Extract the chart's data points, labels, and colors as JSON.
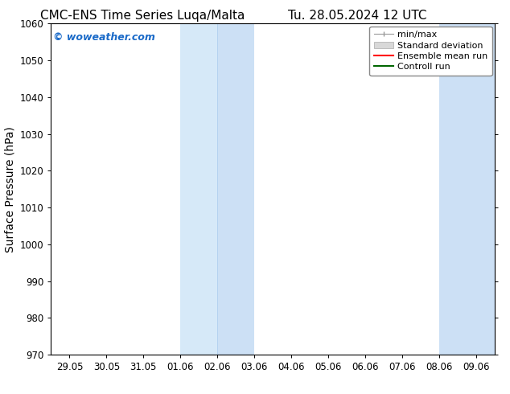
{
  "title_left": "CMC-ENS Time Series Luqa/Malta",
  "title_right": "Tu. 28.05.2024 12 UTC",
  "ylabel": "Surface Pressure (hPa)",
  "ylim": [
    970,
    1060
  ],
  "yticks": [
    970,
    980,
    990,
    1000,
    1010,
    1020,
    1030,
    1040,
    1050,
    1060
  ],
  "xtick_labels": [
    "29.05",
    "30.05",
    "31.05",
    "01.06",
    "02.06",
    "03.06",
    "04.06",
    "05.06",
    "06.06",
    "07.06",
    "08.06",
    "09.06"
  ],
  "xtick_positions": [
    0,
    1,
    2,
    3,
    4,
    5,
    6,
    7,
    8,
    9,
    10,
    11
  ],
  "xlim": [
    -0.5,
    11.5
  ],
  "bg_color": "#ffffff",
  "plot_bg_color": "#ffffff",
  "shaded_bands": [
    {
      "x_start": 3.0,
      "x_end": 4.0,
      "color": "#d6e9f8"
    },
    {
      "x_start": 4.0,
      "x_end": 5.0,
      "color": "#cce0f5"
    },
    {
      "x_start": 10.0,
      "x_end": 11.5,
      "color": "#cce0f5"
    }
  ],
  "band_separator": {
    "x": 4.0,
    "color": "#aaccee",
    "lw": 0.5
  },
  "watermark_text": "© woweather.com",
  "watermark_color": "#1a6ac8",
  "legend_items": [
    {
      "label": "min/max",
      "type": "minmax",
      "color": "#999999"
    },
    {
      "label": "Standard deviation",
      "type": "patch",
      "facecolor": "#d8d8d8",
      "edgecolor": "#aaaaaa"
    },
    {
      "label": "Ensemble mean run",
      "type": "line",
      "color": "#ff0000",
      "linewidth": 1.5
    },
    {
      "label": "Controll run",
      "type": "line",
      "color": "#006600",
      "linewidth": 1.5
    }
  ],
  "spine_color": "#000000",
  "tick_color": "#000000",
  "title_fontsize": 11,
  "axis_label_fontsize": 10,
  "tick_fontsize": 8.5,
  "watermark_fontsize": 9,
  "legend_fontsize": 8
}
